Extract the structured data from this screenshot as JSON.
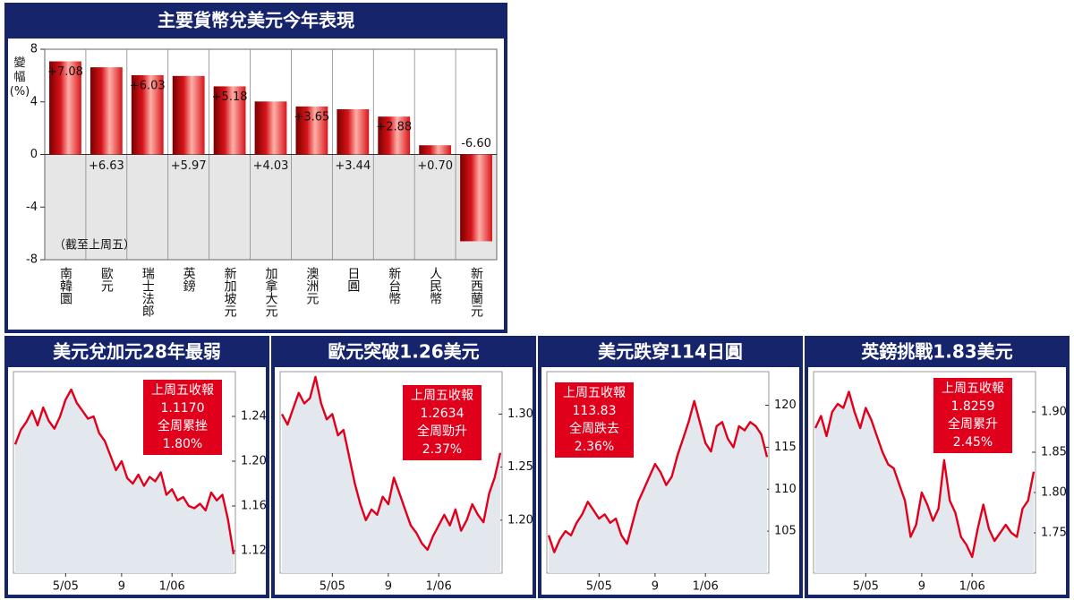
{
  "chart_data": [
    {
      "type": "bar",
      "title": "主要貨幣兌美元今年表現",
      "ylabel": "變幅(%)",
      "annotation": "（截至上周五）",
      "categories": [
        "南韓圜",
        "歐元",
        "瑞士法郎",
        "英鎊",
        "新加坡元",
        "加拿大元",
        "澳洲元",
        "日圓",
        "新台幣",
        "人民幣",
        "新西蘭元"
      ],
      "values": [
        7.08,
        6.63,
        6.03,
        5.97,
        5.18,
        4.03,
        3.65,
        3.44,
        2.88,
        0.7,
        -6.6
      ],
      "value_labels": [
        "+7.08",
        "+6.63",
        "+6.03",
        "+5.97",
        "+5.18",
        "+4.03",
        "+3.65",
        "+3.44",
        "+2.88",
        "+0.70",
        "-6.60"
      ],
      "color": "#d7141a",
      "ylim": [
        -8,
        8
      ],
      "yticks": [
        -8,
        -4,
        0,
        4,
        8
      ],
      "grid": true
    },
    {
      "type": "line",
      "title": "美元兌加元28年最弱",
      "annotation": [
        "上周五收報",
        "1.1170",
        "全周累挫",
        "1.80%"
      ],
      "categories": [
        null,
        null,
        null,
        null,
        null,
        null,
        null,
        null,
        null,
        "5/05",
        null,
        null,
        null,
        null,
        null,
        null,
        null,
        null,
        null,
        "9",
        null,
        null,
        null,
        null,
        null,
        null,
        null,
        null,
        "1/06",
        null,
        null,
        null,
        null,
        null,
        null,
        null,
        null,
        null,
        null,
        null
      ],
      "series": [
        {
          "color": "#e0001b",
          "values": [
            1.215,
            1.228,
            1.235,
            1.245,
            1.232,
            1.248,
            1.236,
            1.229,
            1.24,
            1.255,
            1.264,
            1.252,
            1.245,
            1.238,
            1.24,
            1.225,
            1.218,
            1.205,
            1.192,
            1.2,
            1.185,
            1.18,
            1.188,
            1.178,
            1.186,
            1.182,
            1.19,
            1.17,
            1.175,
            1.165,
            1.168,
            1.16,
            1.158,
            1.162,
            1.156,
            1.172,
            1.165,
            1.17,
            1.148,
            1.117
          ]
        }
      ],
      "ylim": [
        1.1,
        1.28
      ],
      "yticks": [
        1.12,
        1.16,
        {
          "value": 1.2,
          "label": "1.20"
        },
        1.24
      ],
      "y_axis_side": "right",
      "area_color": "#e3e8ef"
    },
    {
      "type": "line",
      "title": "歐元突破1.26美元",
      "annotation": [
        "上周五收報",
        "1.2634",
        "全周勁升",
        "2.37%"
      ],
      "categories": [
        null,
        null,
        null,
        null,
        null,
        null,
        null,
        null,
        null,
        "5/05",
        null,
        null,
        null,
        null,
        null,
        null,
        null,
        null,
        null,
        "9",
        null,
        null,
        null,
        null,
        null,
        null,
        null,
        null,
        "1/06",
        null,
        null,
        null,
        null,
        null,
        null,
        null,
        null,
        null,
        null,
        null
      ],
      "series": [
        {
          "color": "#e0001b",
          "values": [
            1.3,
            1.29,
            1.305,
            1.32,
            1.31,
            1.315,
            1.335,
            1.31,
            1.295,
            1.3,
            1.28,
            1.285,
            1.26,
            1.235,
            1.215,
            1.2,
            1.21,
            1.205,
            1.222,
            1.215,
            1.24,
            1.225,
            1.21,
            1.195,
            1.188,
            1.178,
            1.172,
            1.185,
            1.195,
            1.205,
            1.195,
            1.21,
            1.19,
            1.2,
            1.215,
            1.205,
            1.198,
            1.225,
            1.24,
            1.2634
          ]
        }
      ],
      "ylim": [
        1.15,
        1.34
      ],
      "yticks": [
        {
          "value": 1.2,
          "label": "1.20"
        },
        1.25,
        {
          "value": 1.3,
          "label": "1.30"
        }
      ],
      "y_axis_side": "right",
      "area_color": "#e3e8ef"
    },
    {
      "type": "line",
      "title": "美元跌穿114日圓",
      "annotation": [
        "上周五收報",
        "113.83",
        "全周跌去",
        "2.36%"
      ],
      "categories": [
        null,
        null,
        null,
        null,
        null,
        null,
        null,
        null,
        null,
        "5/05",
        null,
        null,
        null,
        null,
        null,
        null,
        null,
        null,
        null,
        "9",
        null,
        null,
        null,
        null,
        null,
        null,
        null,
        null,
        "1/06",
        null,
        null,
        null,
        null,
        null,
        null,
        null,
        null,
        null,
        null,
        null
      ],
      "series": [
        {
          "color": "#e0001b",
          "values": [
            104.5,
            102.5,
            104,
            105,
            104.5,
            106,
            107,
            108.5,
            107.5,
            106.5,
            107,
            106,
            106.5,
            104.5,
            103.5,
            106,
            108.5,
            110,
            111.5,
            113,
            112,
            110.5,
            111.5,
            114,
            116,
            118,
            120.5,
            118,
            115.5,
            114.5,
            117.5,
            118,
            116,
            115,
            117.5,
            117,
            118,
            117.5,
            116.5,
            113.83
          ]
        }
      ],
      "ylim": [
        100,
        124
      ],
      "yticks": [
        105,
        110,
        115,
        120
      ],
      "y_axis_side": "right",
      "area_color": "#e3e8ef"
    },
    {
      "type": "line",
      "title": "英鎊挑戰1.83美元",
      "annotation": [
        "上周五收報",
        "1.8259",
        "全周累升",
        "2.45%"
      ],
      "categories": [
        null,
        null,
        null,
        null,
        null,
        null,
        null,
        null,
        null,
        "5/05",
        null,
        null,
        null,
        null,
        null,
        null,
        null,
        null,
        null,
        "9",
        null,
        null,
        null,
        null,
        null,
        null,
        null,
        null,
        "1/06",
        null,
        null,
        null,
        null,
        null,
        null,
        null,
        null,
        null,
        null,
        null
      ],
      "series": [
        {
          "color": "#e0001b",
          "values": [
            1.88,
            1.895,
            1.87,
            1.9,
            1.91,
            1.905,
            1.925,
            1.9,
            1.88,
            1.905,
            1.89,
            1.87,
            1.85,
            1.835,
            1.83,
            1.81,
            1.79,
            1.745,
            1.76,
            1.8,
            1.785,
            1.765,
            1.78,
            1.84,
            1.79,
            1.775,
            1.745,
            1.735,
            1.72,
            1.755,
            1.785,
            1.755,
            1.74,
            1.75,
            1.76,
            1.75,
            1.745,
            1.78,
            1.79,
            1.8259
          ]
        }
      ],
      "ylim": [
        1.7,
        1.95
      ],
      "yticks": [
        1.75,
        {
          "value": 1.8,
          "label": "1.80"
        },
        1.85,
        {
          "value": 1.9,
          "label": "1.90"
        }
      ],
      "y_axis_side": "right",
      "area_color": "#e3e8ef"
    }
  ]
}
